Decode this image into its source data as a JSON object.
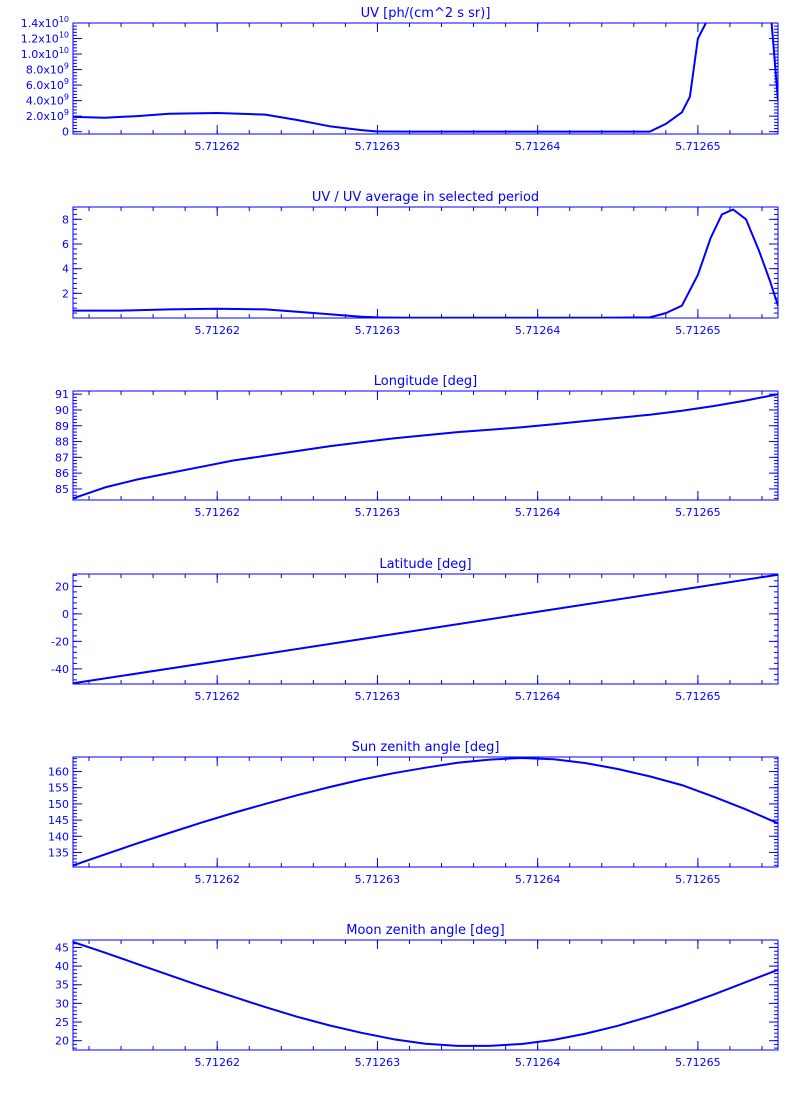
{
  "figure": {
    "line_color": "#0000ff",
    "background": "#ffffff"
  },
  "panels": [
    {
      "title": "UV [ph/(cm^2 s sr)]"
    },
    {
      "title": "UV / UV average in selected period"
    },
    {
      "title": "Longitude [deg]"
    },
    {
      "title": "Latitude [deg]"
    },
    {
      "title": "Sun zenith angle [deg]"
    },
    {
      "title": "Moon zenith angle [deg]"
    }
  ],
  "chart_data": [
    {
      "type": "line",
      "title": "UV [ph/(cm^2 s sr)]",
      "xlabel": "",
      "ylabel": "",
      "xlim": [
        5.712611,
        5.712655
      ],
      "ylim": [
        -300000000.0,
        14000000000.0
      ],
      "x_ticks": [
        5.71262,
        5.71263,
        5.71264,
        5.71265
      ],
      "x_tick_labels": [
        "5.71262",
        "5.71263",
        "5.71264",
        "5.71265"
      ],
      "y_ticks": [
        0,
        2000000000.0,
        4000000000.0,
        6000000000.0,
        8000000000.0,
        10000000000.0,
        12000000000.0,
        14000000000.0
      ],
      "y_tick_labels": [
        "0",
        "2.0x10^9",
        "4.0x10^9",
        "6.0x10^9",
        "8.0x10^9",
        "1.0x10^10",
        "1.2x10^10",
        "1.4x10^10"
      ],
      "series": [
        {
          "x": [
            5.712611,
            5.712613,
            5.712615,
            5.712617,
            5.71262,
            5.712623,
            5.712625,
            5.712627,
            5.712629,
            5.71263,
            5.712632,
            5.712635,
            5.712638,
            5.712641,
            5.712644,
            5.712647,
            5.712648,
            5.712649,
            5.7126495,
            5.71265,
            5.7126505
          ],
          "y": [
            1900000000.0,
            1800000000.0,
            2000000000.0,
            2300000000.0,
            2400000000.0,
            2200000000.0,
            1500000000.0,
            700000000.0,
            200000000.0,
            20000000.0,
            5000000.0,
            5000000.0,
            5000000.0,
            5000000.0,
            5000000.0,
            10000000.0,
            1000000000.0,
            2500000000.0,
            4500000000.0,
            12000000000.0,
            14000000000.0
          ]
        },
        {
          "x": [
            5.7126546,
            5.712655
          ],
          "y": [
            14000000000.0,
            4000000000.0
          ]
        }
      ],
      "grid": false
    },
    {
      "type": "line",
      "title": "UV / UV average in selected period",
      "xlabel": "",
      "ylabel": "",
      "xlim": [
        5.712611,
        5.712655
      ],
      "ylim": [
        0,
        9
      ],
      "x_ticks": [
        5.71262,
        5.71263,
        5.71264,
        5.71265
      ],
      "x_tick_labels": [
        "5.71262",
        "5.71263",
        "5.71264",
        "5.71265"
      ],
      "y_ticks": [
        2,
        4,
        6,
        8
      ],
      "y_tick_labels": [
        "2",
        "4",
        "6",
        "8"
      ],
      "series": [
        {
          "x": [
            5.712611,
            5.712614,
            5.712617,
            5.71262,
            5.712623,
            5.712625,
            5.712627,
            5.712629,
            5.71263,
            5.712632,
            5.712635,
            5.712638,
            5.712641,
            5.712644,
            5.712647,
            5.712648,
            5.712649,
            5.71265,
            5.7126508,
            5.7126515,
            5.7126522,
            5.712653,
            5.7126538,
            5.7126545,
            5.712655
          ],
          "y": [
            0.6,
            0.6,
            0.7,
            0.75,
            0.7,
            0.5,
            0.3,
            0.1,
            0.05,
            0.02,
            0.02,
            0.02,
            0.02,
            0.02,
            0.05,
            0.4,
            1.0,
            3.5,
            6.5,
            8.4,
            8.8,
            8.0,
            5.5,
            3.0,
            1.0
          ]
        }
      ],
      "grid": false
    },
    {
      "type": "line",
      "title": "Longitude [deg]",
      "xlabel": "",
      "ylabel": "",
      "xlim": [
        5.712611,
        5.712655
      ],
      "ylim": [
        84.3,
        91.2
      ],
      "x_ticks": [
        5.71262,
        5.71263,
        5.71264,
        5.71265
      ],
      "x_tick_labels": [
        "5.71262",
        "5.71263",
        "5.71264",
        "5.71265"
      ],
      "y_ticks": [
        85,
        86,
        87,
        88,
        89,
        90,
        91
      ],
      "y_tick_labels": [
        "85",
        "86",
        "87",
        "88",
        "89",
        "90",
        "91"
      ],
      "series": [
        {
          "x": [
            5.712611,
            5.712613,
            5.712615,
            5.712617,
            5.712619,
            5.712621,
            5.712623,
            5.712625,
            5.712627,
            5.712629,
            5.712631,
            5.712633,
            5.712635,
            5.712637,
            5.712639,
            5.712641,
            5.712643,
            5.712645,
            5.712647,
            5.712649,
            5.712651,
            5.712653,
            5.712655
          ],
          "y": [
            84.4,
            85.1,
            85.6,
            86.0,
            86.4,
            86.8,
            87.1,
            87.4,
            87.7,
            87.95,
            88.2,
            88.4,
            88.6,
            88.75,
            88.9,
            89.1,
            89.3,
            89.5,
            89.7,
            89.95,
            90.25,
            90.6,
            91.0
          ]
        }
      ],
      "grid": false
    },
    {
      "type": "line",
      "title": "Latitude [deg]",
      "xlabel": "",
      "ylabel": "",
      "xlim": [
        5.712611,
        5.712655
      ],
      "ylim": [
        -51,
        29
      ],
      "x_ticks": [
        5.71262,
        5.71263,
        5.71264,
        5.71265
      ],
      "x_tick_labels": [
        "5.71262",
        "5.71263",
        "5.71264",
        "5.71265"
      ],
      "y_ticks": [
        -40,
        -20,
        0,
        20
      ],
      "y_tick_labels": [
        "-40",
        "-20",
        "0",
        "20"
      ],
      "series": [
        {
          "x": [
            5.712611,
            5.71262,
            5.71263,
            5.71264,
            5.71265,
            5.712655
          ],
          "y": [
            -50.5,
            -34.5,
            -16.5,
            1.5,
            19.5,
            28.5
          ]
        }
      ],
      "grid": false
    },
    {
      "type": "line",
      "title": "Sun zenith angle [deg]",
      "xlabel": "",
      "ylabel": "",
      "xlim": [
        5.712611,
        5.712655
      ],
      "ylim": [
        130.5,
        164.5
      ],
      "x_ticks": [
        5.71262,
        5.71263,
        5.71264,
        5.71265
      ],
      "x_tick_labels": [
        "5.71262",
        "5.71263",
        "5.71264",
        "5.71265"
      ],
      "y_ticks": [
        135,
        140,
        145,
        150,
        155,
        160
      ],
      "y_tick_labels": [
        "135",
        "140",
        "145",
        "150",
        "155",
        "160"
      ],
      "series": [
        {
          "x": [
            5.712611,
            5.712613,
            5.712615,
            5.712617,
            5.712619,
            5.712621,
            5.712623,
            5.712625,
            5.712627,
            5.712629,
            5.712631,
            5.712633,
            5.712635,
            5.712637,
            5.712639,
            5.712641,
            5.712643,
            5.712645,
            5.712647,
            5.712649,
            5.712651,
            5.712653,
            5.712655
          ],
          "y": [
            131,
            134.4,
            137.8,
            141.0,
            144.2,
            147.2,
            150.0,
            152.7,
            155.2,
            157.5,
            159.5,
            161.2,
            162.7,
            163.7,
            164.2,
            163.8,
            162.6,
            160.8,
            158.5,
            155.8,
            152.2,
            148.3,
            144.0
          ]
        }
      ],
      "grid": false
    },
    {
      "type": "line",
      "title": "Moon zenith angle [deg]",
      "xlabel": "",
      "ylabel": "",
      "xlim": [
        5.712611,
        5.712655
      ],
      "ylim": [
        17.5,
        47
      ],
      "x_ticks": [
        5.71262,
        5.71263,
        5.71264,
        5.71265
      ],
      "x_tick_labels": [
        "5.71262",
        "5.71263",
        "5.71264",
        "5.71265"
      ],
      "y_ticks": [
        20,
        25,
        30,
        35,
        40,
        45
      ],
      "y_tick_labels": [
        "20",
        "25",
        "30",
        "35",
        "40",
        "45"
      ],
      "series": [
        {
          "x": [
            5.712611,
            5.712613,
            5.712615,
            5.712617,
            5.712619,
            5.712621,
            5.712623,
            5.712625,
            5.712627,
            5.712629,
            5.712631,
            5.712633,
            5.712635,
            5.712637,
            5.712639,
            5.712641,
            5.712643,
            5.712645,
            5.712647,
            5.712649,
            5.712651,
            5.712653,
            5.712655
          ],
          "y": [
            46.5,
            43.6,
            40.6,
            37.6,
            34.6,
            31.8,
            29.0,
            26.4,
            24.1,
            22.1,
            20.4,
            19.2,
            18.6,
            18.6,
            19.1,
            20.2,
            21.9,
            24.0,
            26.5,
            29.3,
            32.4,
            35.7,
            39.0
          ]
        }
      ],
      "grid": false
    }
  ]
}
